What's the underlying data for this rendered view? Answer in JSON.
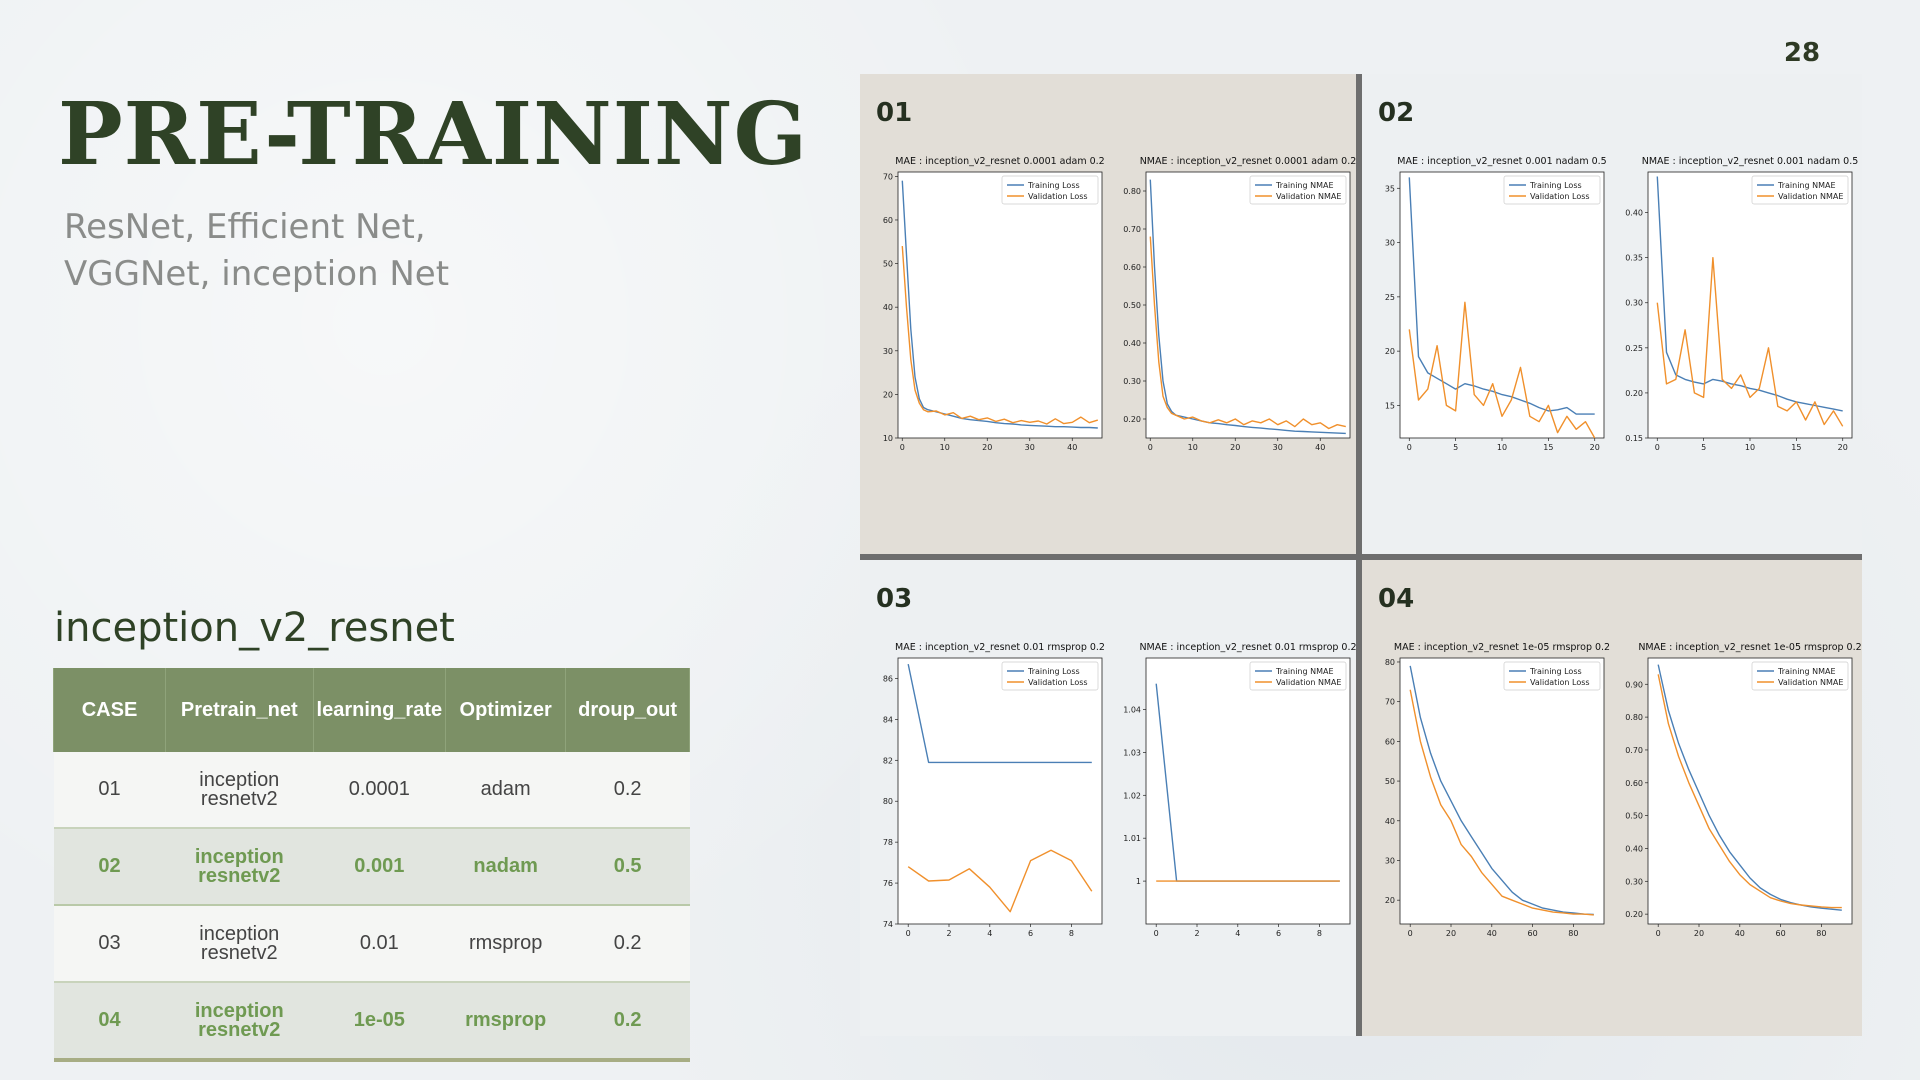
{
  "page_number": "28",
  "title": "PRE-TRAINING",
  "subtitle_lines": [
    "ResNet, Efficient Net,",
    "VGGNet, inception Net"
  ],
  "table": {
    "title": "inception_v2_resnet",
    "headers": [
      "CASE",
      "Pretrain_net",
      "learning_rate",
      "Optimizer",
      "droup_out"
    ],
    "rows": [
      {
        "case": "01",
        "net_line1": "inception",
        "net_line2": "resnetv2",
        "lr": "0.0001",
        "opt": "adam",
        "drop": "0.2"
      },
      {
        "case": "02",
        "net_line1": "inception",
        "net_line2": "resnetv2",
        "lr": "0.001",
        "opt": "nadam",
        "drop": "0.5"
      },
      {
        "case": "03",
        "net_line1": "inception",
        "net_line2": "resnetv2",
        "lr": "0.01",
        "opt": "rmsprop",
        "drop": "0.2"
      },
      {
        "case": "04",
        "net_line1": "inception",
        "net_line2": "resnetv2",
        "lr": "1e-05",
        "opt": "rmsprop",
        "drop": "0.2"
      }
    ],
    "highlight_color": "#6f9a52",
    "header_color": "#7c9066"
  },
  "panels": [
    {
      "label": "01",
      "bg": "#e2ded7"
    },
    {
      "label": "02",
      "bg": "#edf0f2"
    },
    {
      "label": "03",
      "bg": "#edf0f2"
    },
    {
      "label": "04",
      "bg": "#e2ded7"
    }
  ],
  "colors": {
    "training": "#4a7fb5",
    "validation": "#f0902c"
  },
  "chart_data": [
    {
      "type": "line",
      "panel": 0,
      "title": "MAE : inception_v2_resnet 0.0001 adam 0.2",
      "legend": [
        "Training Loss",
        "Validation Loss"
      ],
      "xlim": [
        -1,
        47
      ],
      "ylim": [
        10,
        71
      ],
      "xticks": [
        0,
        10,
        20,
        30,
        40
      ],
      "yticks": [
        10,
        20,
        30,
        40,
        50,
        60,
        70
      ],
      "series": [
        {
          "name": "Training Loss",
          "x": [
            0,
            1,
            2,
            3,
            4,
            5,
            6,
            8,
            10,
            12,
            14,
            16,
            18,
            20,
            22,
            24,
            26,
            28,
            30,
            32,
            34,
            36,
            38,
            40,
            42,
            44,
            46
          ],
          "y": [
            69,
            52,
            35,
            24,
            19,
            17,
            16.5,
            16,
            15.5,
            15,
            14.5,
            14.2,
            14,
            13.8,
            13.5,
            13.3,
            13.2,
            13,
            12.9,
            12.8,
            12.7,
            12.6,
            12.6,
            12.5,
            12.4,
            12.4,
            12.3
          ]
        },
        {
          "name": "Validation Loss",
          "x": [
            0,
            1,
            2,
            3,
            4,
            5,
            6,
            8,
            10,
            12,
            14,
            16,
            18,
            20,
            22,
            24,
            26,
            28,
            30,
            32,
            34,
            36,
            38,
            40,
            42,
            44,
            46
          ],
          "y": [
            54,
            40,
            28,
            21,
            18,
            16.5,
            16,
            16.2,
            15.3,
            15.8,
            14.5,
            15,
            14.2,
            14.6,
            13.8,
            14.3,
            13.5,
            14,
            13.6,
            13.9,
            13.2,
            14.4,
            13.3,
            13.6,
            14.8,
            13.5,
            14.1
          ]
        }
      ]
    },
    {
      "type": "line",
      "panel": 0,
      "title": "NMAE : inception_v2_resnet 0.0001 adam 0.2",
      "legend": [
        "Training NMAE",
        "Validation NMAE"
      ],
      "xlim": [
        -1,
        47
      ],
      "ylim": [
        0.15,
        0.85
      ],
      "xticks": [
        0,
        10,
        20,
        30,
        40
      ],
      "yticks": [
        0.2,
        0.3,
        0.4,
        0.5,
        0.6,
        0.7,
        0.8
      ],
      "series": [
        {
          "name": "Training NMAE",
          "x": [
            0,
            1,
            2,
            3,
            4,
            5,
            6,
            8,
            10,
            12,
            14,
            16,
            18,
            20,
            22,
            24,
            26,
            28,
            30,
            32,
            34,
            36,
            38,
            40,
            42,
            44,
            46
          ],
          "y": [
            0.83,
            0.6,
            0.42,
            0.3,
            0.24,
            0.22,
            0.21,
            0.205,
            0.2,
            0.195,
            0.19,
            0.188,
            0.185,
            0.183,
            0.18,
            0.178,
            0.176,
            0.174,
            0.172,
            0.17,
            0.168,
            0.167,
            0.166,
            0.165,
            0.164,
            0.163,
            0.162
          ]
        },
        {
          "name": "Validation NMAE",
          "x": [
            0,
            1,
            2,
            3,
            4,
            5,
            6,
            8,
            10,
            12,
            14,
            16,
            18,
            20,
            22,
            24,
            26,
            28,
            30,
            32,
            34,
            36,
            38,
            40,
            42,
            44,
            46
          ],
          "y": [
            0.68,
            0.5,
            0.35,
            0.26,
            0.23,
            0.215,
            0.21,
            0.2,
            0.205,
            0.195,
            0.19,
            0.198,
            0.19,
            0.2,
            0.185,
            0.195,
            0.19,
            0.2,
            0.185,
            0.195,
            0.18,
            0.2,
            0.185,
            0.19,
            0.175,
            0.185,
            0.18
          ]
        }
      ]
    },
    {
      "type": "line",
      "panel": 1,
      "title": "MAE : inception_v2_resnet 0.001 nadam 0.5",
      "legend": [
        "Training Loss",
        "Validation Loss"
      ],
      "xlim": [
        -1,
        21
      ],
      "ylim": [
        12,
        36.5
      ],
      "xticks": [
        0,
        5,
        10,
        15,
        20
      ],
      "yticks": [
        15,
        20,
        25,
        30,
        35
      ],
      "series": [
        {
          "name": "Training Loss",
          "x": [
            0,
            1,
            2,
            3,
            4,
            5,
            6,
            7,
            8,
            9,
            10,
            11,
            12,
            13,
            14,
            15,
            16,
            17,
            18,
            19,
            20
          ],
          "y": [
            36,
            19.5,
            18,
            17.5,
            17,
            16.5,
            17,
            16.8,
            16.5,
            16.3,
            16,
            15.8,
            15.5,
            15.2,
            14.8,
            14.5,
            14.6,
            14.8,
            14.2,
            14.2,
            14.2
          ]
        },
        {
          "name": "Validation Loss",
          "x": [
            0,
            1,
            2,
            3,
            4,
            5,
            6,
            7,
            8,
            9,
            10,
            11,
            12,
            13,
            14,
            15,
            16,
            17,
            18,
            19,
            20
          ],
          "y": [
            22,
            15.5,
            16.5,
            20.5,
            15,
            14.5,
            24.5,
            16,
            15,
            17,
            14,
            15.5,
            18.5,
            14,
            13.5,
            15,
            12.5,
            14,
            12.8,
            13.5,
            12
          ]
        }
      ]
    },
    {
      "type": "line",
      "panel": 1,
      "title": "NMAE : inception_v2_resnet 0.001 nadam 0.5",
      "legend": [
        "Training NMAE",
        "Validation NMAE"
      ],
      "xlim": [
        -1,
        21
      ],
      "ylim": [
        0.15,
        0.445
      ],
      "xticks": [
        0,
        5,
        10,
        15,
        20
      ],
      "yticks": [
        0.15,
        0.2,
        0.25,
        0.3,
        0.35,
        0.4
      ],
      "series": [
        {
          "name": "Training NMAE",
          "x": [
            0,
            1,
            2,
            3,
            4,
            5,
            6,
            7,
            8,
            9,
            10,
            11,
            12,
            13,
            14,
            15,
            16,
            17,
            18,
            19,
            20
          ],
          "y": [
            0.44,
            0.245,
            0.22,
            0.215,
            0.212,
            0.21,
            0.215,
            0.213,
            0.21,
            0.208,
            0.205,
            0.203,
            0.2,
            0.197,
            0.193,
            0.19,
            0.188,
            0.186,
            0.184,
            0.182,
            0.18
          ]
        },
        {
          "name": "Validation NMAE",
          "x": [
            0,
            1,
            2,
            3,
            4,
            5,
            6,
            7,
            8,
            9,
            10,
            11,
            12,
            13,
            14,
            15,
            16,
            17,
            18,
            19,
            20
          ],
          "y": [
            0.3,
            0.21,
            0.215,
            0.27,
            0.2,
            0.195,
            0.35,
            0.215,
            0.205,
            0.22,
            0.195,
            0.205,
            0.25,
            0.185,
            0.18,
            0.19,
            0.17,
            0.19,
            0.165,
            0.18,
            0.163
          ]
        }
      ]
    },
    {
      "type": "line",
      "panel": 2,
      "title": "MAE : inception_v2_resnet 0.01 rmsprop 0.2",
      "legend": [
        "Training Loss",
        "Validation Loss"
      ],
      "xlim": [
        -0.5,
        9.5
      ],
      "ylim": [
        74,
        87
      ],
      "xticks": [
        0,
        2,
        4,
        6,
        8
      ],
      "yticks": [
        74,
        76,
        78,
        80,
        82,
        84,
        86
      ],
      "series": [
        {
          "name": "Training Loss",
          "x": [
            0,
            1,
            2,
            3,
            4,
            5,
            6,
            7,
            8,
            9
          ],
          "y": [
            86.7,
            81.9,
            81.9,
            81.9,
            81.9,
            81.9,
            81.9,
            81.9,
            81.9,
            81.9
          ]
        },
        {
          "name": "Validation Loss",
          "x": [
            0,
            1,
            2,
            3,
            4,
            5,
            6,
            7,
            8,
            9
          ],
          "y": [
            76.8,
            76.1,
            76.15,
            76.7,
            75.8,
            74.6,
            77.1,
            77.6,
            77.1,
            75.6
          ]
        }
      ]
    },
    {
      "type": "line",
      "panel": 2,
      "title": "NMAE : inception_v2_resnet 0.01 rmsprop 0.2",
      "legend": [
        "Training NMAE",
        "Validation NMAE"
      ],
      "xlim": [
        -0.5,
        9.5
      ],
      "ylim": [
        0.99,
        1.052
      ],
      "xticks": [
        0,
        2,
        4,
        6,
        8
      ],
      "yticks": [
        1.0,
        1.01,
        1.02,
        1.03,
        1.04
      ],
      "series": [
        {
          "name": "Training NMAE",
          "x": [
            0,
            1,
            2,
            3,
            4,
            5,
            6,
            7,
            8,
            9
          ],
          "y": [
            1.046,
            1.0,
            1.0,
            1.0,
            1.0,
            1.0,
            1.0,
            1.0,
            1.0,
            1.0
          ]
        },
        {
          "name": "Validation NMAE",
          "x": [
            0,
            1,
            2,
            3,
            4,
            5,
            6,
            7,
            8,
            9
          ],
          "y": [
            1.0,
            1.0,
            1.0,
            1.0,
            1.0,
            1.0,
            1.0,
            1.0,
            1.0,
            1.0
          ]
        }
      ]
    },
    {
      "type": "line",
      "panel": 3,
      "title": "MAE : inception_v2_resnet 1e-05 rmsprop 0.2",
      "legend": [
        "Training Loss",
        "Validation Loss"
      ],
      "xlim": [
        -5,
        95
      ],
      "ylim": [
        14,
        81
      ],
      "xticks": [
        0,
        20,
        40,
        60,
        80
      ],
      "yticks": [
        20,
        30,
        40,
        50,
        60,
        70,
        80
      ],
      "series": [
        {
          "name": "Training Loss",
          "x": [
            0,
            5,
            10,
            15,
            20,
            25,
            30,
            35,
            40,
            45,
            50,
            55,
            60,
            65,
            70,
            75,
            80,
            85,
            90
          ],
          "y": [
            79,
            66,
            57,
            50,
            45,
            40,
            36,
            32,
            28,
            25,
            22,
            20,
            19,
            18,
            17.5,
            17,
            16.8,
            16.5,
            16.4
          ]
        },
        {
          "name": "Validation Loss",
          "x": [
            0,
            5,
            10,
            15,
            20,
            25,
            30,
            35,
            40,
            45,
            50,
            55,
            60,
            65,
            70,
            75,
            80,
            85,
            90
          ],
          "y": [
            73,
            60,
            51,
            44,
            40,
            34,
            31,
            27,
            24,
            21,
            20,
            19,
            18,
            17.5,
            17,
            16.8,
            16.5,
            16.5,
            16.3
          ]
        }
      ]
    },
    {
      "type": "line",
      "panel": 3,
      "title": "NMAE : inception_v2_resnet 1e-05 rmsprop 0.2",
      "legend": [
        "Training NMAE",
        "Validation NMAE"
      ],
      "xlim": [
        -5,
        95
      ],
      "ylim": [
        0.17,
        0.98
      ],
      "xticks": [
        0,
        20,
        40,
        60,
        80
      ],
      "yticks": [
        0.2,
        0.3,
        0.4,
        0.5,
        0.6,
        0.7,
        0.8,
        0.9
      ],
      "series": [
        {
          "name": "Training NMAE",
          "x": [
            0,
            5,
            10,
            15,
            20,
            25,
            30,
            35,
            40,
            45,
            50,
            55,
            60,
            65,
            70,
            75,
            80,
            85,
            90
          ],
          "y": [
            0.96,
            0.82,
            0.72,
            0.64,
            0.57,
            0.5,
            0.44,
            0.39,
            0.35,
            0.31,
            0.28,
            0.26,
            0.245,
            0.235,
            0.228,
            0.222,
            0.218,
            0.215,
            0.212
          ]
        },
        {
          "name": "Validation NMAE",
          "x": [
            0,
            5,
            10,
            15,
            20,
            25,
            30,
            35,
            40,
            45,
            50,
            55,
            60,
            65,
            70,
            75,
            80,
            85,
            90
          ],
          "y": [
            0.93,
            0.78,
            0.68,
            0.6,
            0.53,
            0.46,
            0.41,
            0.36,
            0.32,
            0.29,
            0.27,
            0.25,
            0.24,
            0.232,
            0.228,
            0.225,
            0.222,
            0.22,
            0.22
          ]
        }
      ]
    }
  ]
}
